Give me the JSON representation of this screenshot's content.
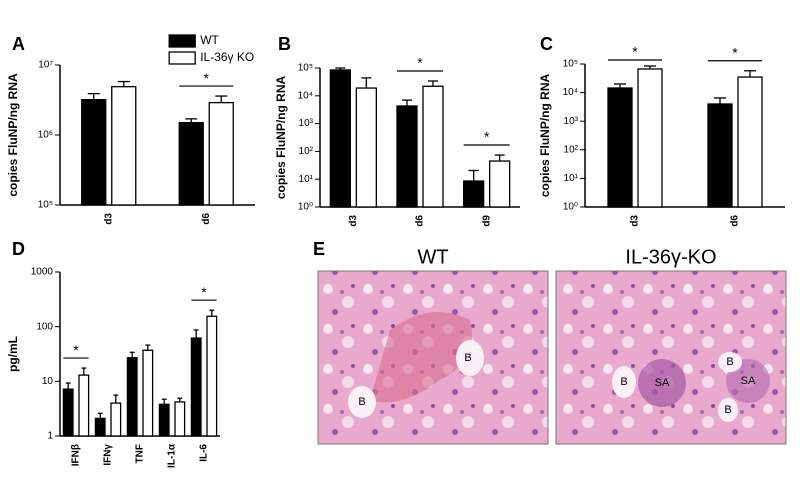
{
  "chart_data": [
    {
      "type": "bar",
      "panel": "A",
      "y_label": "copies FluNP/ng RNA",
      "log_scale": true,
      "legend": "top-right",
      "categories": [
        "d3",
        "d6"
      ],
      "series": [
        {
          "name": "WT",
          "color": "#000000",
          "values": [
            3200000,
            1500000
          ],
          "errors": [
            700000,
            200000
          ]
        },
        {
          "name": "IL-36γ KO",
          "color": "#ffffff",
          "values": [
            4900000,
            2900000
          ],
          "errors": [
            900000,
            700000
          ]
        }
      ],
      "ylim": [
        100000,
        10000000
      ],
      "yticks": [
        {
          "value": 100000,
          "label": "10⁵"
        },
        {
          "value": 1000000,
          "label": "10⁶"
        },
        {
          "value": 10000000,
          "label": "10⁷"
        }
      ],
      "annotations": [
        {
          "text": "*",
          "category": "d6"
        }
      ]
    },
    {
      "type": "bar",
      "panel": "B",
      "y_label": "copies FluNP/ng RNA",
      "log_scale": true,
      "categories": [
        "d3",
        "d6",
        "d9"
      ],
      "series": [
        {
          "color": "#000000",
          "values": [
            85000,
            4300,
            8.6
          ],
          "errors": [
            15000,
            2700,
            12
          ]
        },
        {
          "color": "#ffffff",
          "values": [
            19000,
            22000,
            45
          ],
          "errors": [
            25000,
            12000,
            29
          ]
        }
      ],
      "ylim": [
        1,
        100000
      ],
      "yticks": [
        {
          "value": 1,
          "label": "10⁰"
        },
        {
          "value": 10,
          "label": "10¹"
        },
        {
          "value": 100,
          "label": "10²"
        },
        {
          "value": 1000,
          "label": "10³"
        },
        {
          "value": 10000,
          "label": "10⁴"
        },
        {
          "value": 100000,
          "label": "10⁵"
        }
      ],
      "annotations": [
        {
          "text": "*",
          "category": "d6"
        },
        {
          "text": "*",
          "category": "d9"
        }
      ]
    },
    {
      "type": "bar",
      "panel": "C",
      "y_label": "copies FluNP/ng RNA",
      "log_scale": true,
      "categories": [
        "d3",
        "d6"
      ],
      "series": [
        {
          "color": "#000000",
          "values": [
            14500,
            4000
          ],
          "errors": [
            5500,
            2500
          ]
        },
        {
          "color": "#ffffff",
          "values": [
            67000,
            35000
          ],
          "errors": [
            18000,
            23000
          ]
        }
      ],
      "ylim": [
        1,
        100000
      ],
      "yticks": [
        {
          "value": 1,
          "label": "10⁰"
        },
        {
          "value": 10,
          "label": "10¹"
        },
        {
          "value": 100,
          "label": "10²"
        },
        {
          "value": 1000,
          "label": "10³"
        },
        {
          "value": 10000,
          "label": "10⁴"
        },
        {
          "value": 100000,
          "label": "10⁵"
        }
      ],
      "annotations": [
        {
          "text": "*",
          "category": "d3"
        },
        {
          "text": "*",
          "category": "d6"
        }
      ]
    },
    {
      "type": "bar",
      "panel": "D",
      "y_label": "pg/mL",
      "log_scale": true,
      "categories": [
        "IFNβ",
        "IFNγ",
        "TNF",
        "IL-1α",
        "IL-6"
      ],
      "series": [
        {
          "color": "#000000",
          "values": [
            7.2,
            2.1,
            27,
            3.8,
            62
          ],
          "errors": [
            2.1,
            0.5,
            7,
            0.9,
            25
          ]
        },
        {
          "color": "#ffffff",
          "values": [
            13,
            4,
            37,
            4.2,
            155
          ],
          "errors": [
            4.5,
            1.6,
            9,
            0.7,
            45
          ]
        }
      ],
      "ylim": [
        1,
        1000
      ],
      "yticks": [
        1,
        10,
        100,
        1000
      ],
      "annotations": [
        {
          "text": "*",
          "category": "IFNβ"
        },
        {
          "text": "*",
          "category": "IL-6"
        }
      ]
    }
  ],
  "panel_e": {
    "panel": "E",
    "images": [
      {
        "title": "WT",
        "labels": [
          "B",
          "B"
        ]
      },
      {
        "title": "IL-36γ-KO",
        "labels": [
          "B",
          "SA",
          "B",
          "SA",
          "B"
        ]
      }
    ]
  }
}
